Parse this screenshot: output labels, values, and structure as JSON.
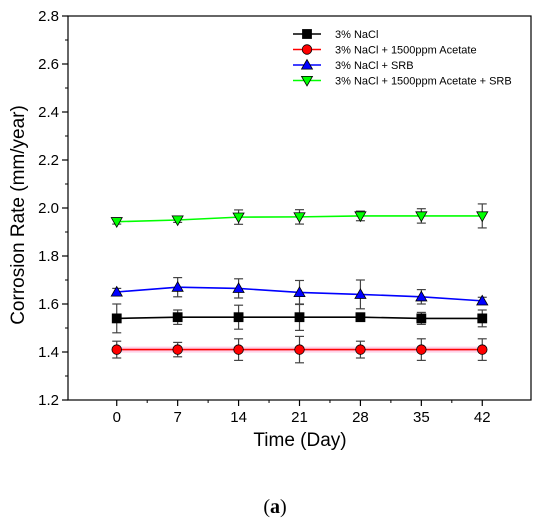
{
  "caption": {
    "open": "(",
    "letter": "a",
    "close": ")"
  },
  "chart_data": {
    "type": "line",
    "title": "",
    "xlabel": "Time (Day)",
    "ylabel": "Corrosion Rate (mm/year)",
    "x": [
      0,
      7,
      14,
      21,
      28,
      35,
      42
    ],
    "x_tick_labels": [
      "0",
      "7",
      "14",
      "21",
      "28",
      "35",
      "42"
    ],
    "xlim": [
      -5.6,
      47.6
    ],
    "ylim": [
      1.2,
      2.8
    ],
    "y_ticks": [
      1.2,
      1.4,
      1.6,
      1.8,
      2.0,
      2.2,
      2.4,
      2.6,
      2.8
    ],
    "y_tick_labels": [
      "1.2",
      "1.4",
      "1.6",
      "1.8",
      "2.0",
      "2.2",
      "2.4",
      "2.6",
      "2.8"
    ],
    "grid": false,
    "legend_position": "top-right",
    "series": [
      {
        "name": "3% NaCl",
        "color": "#000000",
        "marker": "square",
        "values": [
          1.54,
          1.545,
          1.545,
          1.545,
          1.545,
          1.54,
          1.54
        ],
        "errors": [
          0.06,
          0.03,
          0.05,
          0.055,
          0.015,
          0.025,
          0.035
        ]
      },
      {
        "name": "3% NaCl + 1500ppm Acetate",
        "color": "#ff0000",
        "marker": "circle",
        "values": [
          1.41,
          1.41,
          1.41,
          1.41,
          1.41,
          1.41,
          1.41
        ],
        "errors": [
          0.035,
          0.03,
          0.045,
          0.055,
          0.035,
          0.045,
          0.045
        ]
      },
      {
        "name": "3% NaCl + SRB",
        "color": "#0000ff",
        "marker": "triangle-up",
        "values": [
          1.65,
          1.67,
          1.665,
          1.648,
          1.64,
          1.63,
          1.613
        ],
        "errors": [
          0.015,
          0.04,
          0.04,
          0.05,
          0.06,
          0.03,
          0.015
        ]
      },
      {
        "name": "3% NaCl + 1500ppm Acetate + SRB",
        "color": "#00ff00",
        "marker": "triangle-down",
        "values": [
          1.943,
          1.95,
          1.962,
          1.963,
          1.967,
          1.967,
          1.967
        ],
        "errors": [
          0.01,
          0.01,
          0.03,
          0.03,
          0.02,
          0.03,
          0.05
        ]
      }
    ]
  }
}
